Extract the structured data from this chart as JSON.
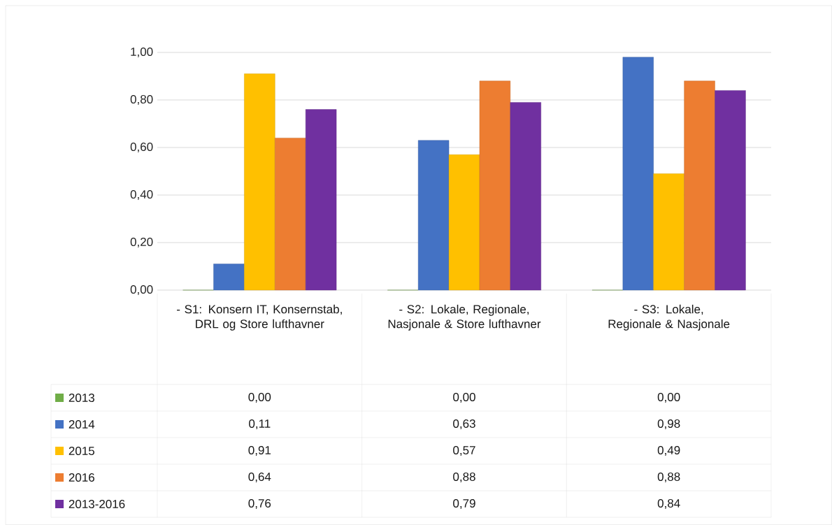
{
  "chart_data": {
    "type": "bar",
    "categories": [
      "- S1: Konsern IT, Konsernstab, DRL og Store lufthavner",
      "- S2: Lokale, Regionale, Nasjonale & Store lufthavner",
      "- S3: Lokale, Regionale & Nasjonale"
    ],
    "series": [
      {
        "name": "2013",
        "color": "#70ad47",
        "values": [
          0.0,
          0.0,
          0.0
        ],
        "value_labels": [
          "0,00",
          "0,00",
          "0,00"
        ]
      },
      {
        "name": "2014",
        "color": "#4472c4",
        "values": [
          0.11,
          0.63,
          0.98
        ],
        "value_labels": [
          "0,11",
          "0,63",
          "0,98"
        ]
      },
      {
        "name": "2015",
        "color": "#ffc000",
        "values": [
          0.91,
          0.57,
          0.49
        ],
        "value_labels": [
          "0,91",
          "0,57",
          "0,49"
        ]
      },
      {
        "name": "2016",
        "color": "#ed7d31",
        "values": [
          0.64,
          0.88,
          0.88
        ],
        "value_labels": [
          "0,64",
          "0,88",
          "0,88"
        ]
      },
      {
        "name": "2013-2016",
        "color": "#7030a0",
        "values": [
          0.76,
          0.79,
          0.84
        ],
        "value_labels": [
          "0,76",
          "0,79",
          "0,84"
        ]
      }
    ],
    "ylim": [
      0,
      1
    ],
    "yticks": [
      {
        "value": 0,
        "label": "0,00"
      },
      {
        "value": 0.2,
        "label": "0,20"
      },
      {
        "value": 0.4,
        "label": "0,40"
      },
      {
        "value": 0.6,
        "label": "0,60"
      },
      {
        "value": 0.8,
        "label": "0,80"
      },
      {
        "value": 1,
        "label": "1,00"
      }
    ],
    "grid": "y",
    "legend": "bottom"
  }
}
